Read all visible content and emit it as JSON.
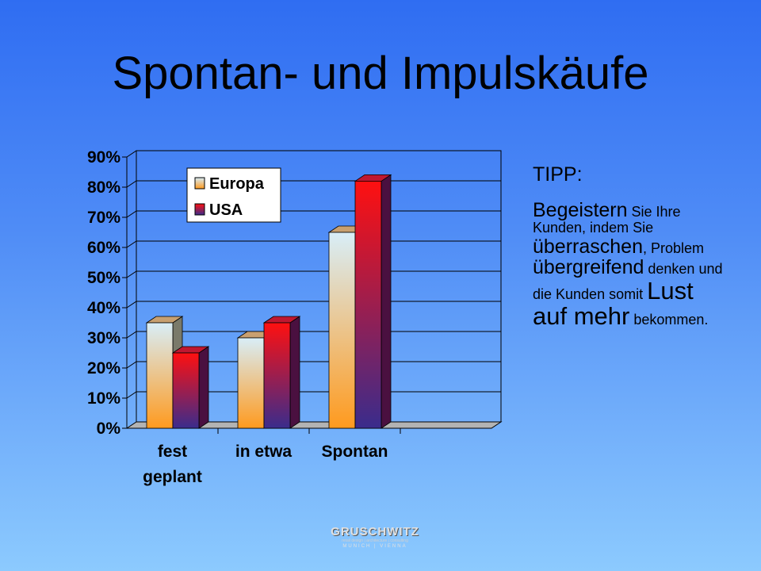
{
  "slide": {
    "title": "Spontan- und Impulskäufe"
  },
  "chart_data": {
    "type": "bar",
    "categories": [
      [
        "fest",
        "geplant"
      ],
      [
        "in etwa"
      ],
      [
        "Spontan"
      ],
      [
        ""
      ]
    ],
    "series": [
      {
        "name": "Europa",
        "values": [
          35,
          30,
          65,
          null
        ]
      },
      {
        "name": "USA",
        "values": [
          25,
          35,
          82,
          null
        ]
      }
    ],
    "ylim": [
      0,
      90
    ],
    "yticks": [
      "0%",
      "10%",
      "20%",
      "30%",
      "40%",
      "50%",
      "60%",
      "70%",
      "80%",
      "90%"
    ],
    "grid": true,
    "legend_position": "top-left",
    "colors": {
      "Europa_top": "#d8eef8",
      "Europa_bottom": "#ff9a1e",
      "USA_top": "#ff1010",
      "USA_bottom": "#3a2c8c"
    }
  },
  "tip": {
    "title": "TIPP:",
    "runs": [
      {
        "text": "Begeistern",
        "size": "m"
      },
      {
        "text": " Sie Ihre Kunden, indem Sie ",
        "size": "s"
      },
      {
        "text": "überraschen",
        "size": "m"
      },
      {
        "text": ", Problem ",
        "size": "s"
      },
      {
        "text": "übergreifend",
        "size": "m"
      },
      {
        "text": " denken und die Kunden somit ",
        "size": "s"
      },
      {
        "text": "Lust auf mehr",
        "size": "l"
      },
      {
        "text": " bekommen.",
        "size": "s"
      }
    ]
  },
  "logo": {
    "name": "GRUSCHWITZ",
    "tagline": "retail design | architecture | consulting",
    "cities": "MUNICH | VIENNA"
  }
}
